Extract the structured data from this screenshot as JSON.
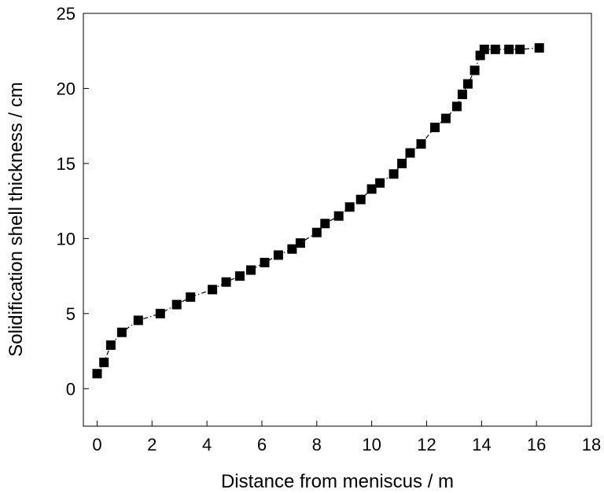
{
  "chart_data": {
    "type": "line",
    "title": "",
    "xlabel": "Distance from meniscus / m",
    "ylabel": "Solidification shell thickness / cm",
    "xlim": [
      -0.5,
      18
    ],
    "ylim": [
      -2.5,
      25
    ],
    "x_ticks": [
      0,
      2,
      4,
      6,
      8,
      10,
      12,
      14,
      16,
      18
    ],
    "y_ticks": [
      0,
      5,
      10,
      15,
      20,
      25
    ],
    "grid": false,
    "legend": "none",
    "marker": "square",
    "line_style": "dash-dot",
    "color": "#000000",
    "series": [
      {
        "x": [
          0.0,
          0.25,
          0.5,
          0.9,
          1.5,
          2.3,
          2.9,
          3.4,
          4.2,
          4.7,
          5.2,
          5.6,
          6.1,
          6.6,
          7.1,
          7.4,
          8.0,
          8.3,
          8.8,
          9.2,
          9.6,
          10.0,
          10.3,
          10.8,
          11.1,
          11.4,
          11.8,
          12.3,
          12.7,
          13.1,
          13.3,
          13.5,
          13.75,
          13.95,
          14.1,
          14.5,
          15.0,
          15.4,
          16.1
        ],
        "y": [
          1.0,
          1.75,
          2.9,
          3.75,
          4.55,
          5.0,
          5.6,
          6.1,
          6.6,
          7.1,
          7.5,
          7.9,
          8.4,
          8.9,
          9.3,
          9.7,
          10.4,
          11.0,
          11.5,
          12.1,
          12.6,
          13.3,
          13.7,
          14.3,
          15.0,
          15.7,
          16.3,
          17.4,
          18.0,
          18.8,
          19.6,
          20.3,
          21.2,
          22.2,
          22.6,
          22.6,
          22.6,
          22.6,
          22.7
        ]
      }
    ]
  }
}
